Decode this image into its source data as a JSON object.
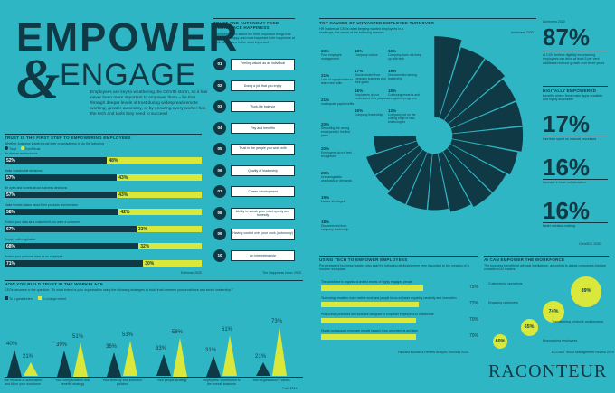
{
  "title": {
    "line1": "EMPOWER",
    "amp": "&",
    "line2": "ENGAGE",
    "intro": "Employees are key to weathering the COVID storm, so it has never been more important to empower them – be that through deeper levels of trust during widespread remote working, greater autonomy, or by ensuring every worker has the tech and tools they need to succeed"
  },
  "trust": {
    "heading": "TRUST IS THE FIRST STEP TO EMPOWERING EMPLOYEES",
    "subtitle": "Whether business leaders trust their organisations to do the following",
    "legend_trust": "Trust",
    "legend_dont": "Don't trust",
    "source": "Edelman 2020"
  },
  "ranked": {
    "heading": "TRUST AND AUTONOMY FEED WORKPLACE HAPPINESS",
    "subtitle": "Employees were asked the most important things that make them happy and most important their happiness at work, where one is the most important",
    "source": "The Happiness Index 2020"
  },
  "build": {
    "heading": "HOW YOU BUILD TRUST IN THE WORKPLACE",
    "subtitle": "CEOs' answers to the question: \"To what extent is your organisation using the following strategies to build trust between your workforce and senior leadership?\"",
    "legend_great": "To a great extent",
    "legend_large": "To a large extent",
    "source": "PwC 2019"
  },
  "turnover": {
    "heading": "TOP CAUSES OF UNWANTED EMPLOYEE TURNOVER",
    "subtitle": "HR leaders at CEOs rated keeping wanted employees is a challenge, the cause of the following reasons",
    "source": "Achievers 2020"
  },
  "right_stats": {
    "source_top": "Achievers 2020",
    "s87_value": "87%",
    "s87_text": "of CIOs believe digitally empowering employees can drive at least 5 per cent additional revenue growth over three years",
    "heading": "DIGITALLY EMPOWERED",
    "heading_sub": "Benefits where firms make apps available and highly accessible",
    "s17_value": "17%",
    "s17_text": "less time spent on manual processes",
    "s16a_value": "16%",
    "s16a_text": "increase in team collaboration",
    "s16b_value": "16%",
    "s16b_text": "faster decision-making",
    "source_bottom": "Citrix/IDC 2020"
  },
  "tech": {
    "heading": "USING TECH TO EMPOWER EMPLOYEES",
    "subtitle": "Percentage of business leaders who said the following attributes were very important to the creation of a modern workplace",
    "source": "Harvard Business Review Analytic Services 2020"
  },
  "ai": {
    "heading": "AI CAN EMPOWER THE WORKFORCE",
    "subtitle": "The business benefits of artificial intelligence, according to global companies that are considered AI leaders",
    "source": "BCG/MIT Sloan Management Review 2019"
  },
  "brand": "RACONTEUR",
  "chart_data": [
    {
      "type": "bar",
      "title": "TRUST IS THE FIRST STEP TO EMPOWERING EMPLOYEES",
      "categories": [
        "Be diverse and inclusive",
        "Make sustainable decisions",
        "Be open and honest about business decisions",
        "Make honest claims about their products and services",
        "Protect your data as a customer/if you were a customer",
        "Comply with regulation",
        "Protect your personal data as an employee"
      ],
      "series": [
        {
          "name": "Trust",
          "values": [
            52,
            57,
            57,
            58,
            67,
            68,
            71
          ],
          "labels": [
            "52%",
            "57%",
            "57%",
            "58%",
            "67%",
            "68%",
            "71%"
          ]
        },
        {
          "name": "Don't trust",
          "values": [
            48,
            43,
            43,
            42,
            33,
            32,
            30
          ],
          "labels": [
            "48%",
            "43%",
            "43%",
            "42%",
            "33%",
            "32%",
            "30%"
          ]
        }
      ],
      "ylim": [
        0,
        100
      ]
    },
    {
      "type": "table",
      "title": "TRUST AND AUTONOMY FEED WORKPLACE HAPPINESS",
      "ranks": [
        "01",
        "02",
        "03",
        "04",
        "05",
        "06",
        "07",
        "08",
        "09",
        "10"
      ],
      "items": [
        "Feeling valued as an individual",
        "Doing a job that you enjoy",
        "Work-life balance",
        "Pay and benefits",
        "Trust in the people you work with",
        "Quality of leadership",
        "Career development",
        "Ability to speak your mind openly and honestly",
        "Having control over your work (autonomy)",
        "An interesting role"
      ]
    },
    {
      "type": "bar",
      "title": "HOW YOU BUILD TRUST IN THE WORKPLACE",
      "categories": [
        "The impacts of automation and AI on your workforce",
        "Your compensation and benefits strategy",
        "Your diversity and inclusion policies",
        "Your people strategy",
        "Employees' contribution to the overall business",
        "Your organisation's values"
      ],
      "series": [
        {
          "name": "To a great extent",
          "values": [
            40,
            39,
            36,
            33,
            31,
            21
          ],
          "labels": [
            "40%",
            "39%",
            "36%",
            "33%",
            "31%",
            "21%"
          ]
        },
        {
          "name": "To a large extent",
          "values": [
            21,
            51,
            53,
            58,
            61,
            73
          ],
          "labels": [
            "21%",
            "51%",
            "53%",
            "58%",
            "61%",
            "73%"
          ]
        }
      ]
    },
    {
      "type": "pie",
      "title": "TOP CAUSES OF UNWANTED EMPLOYEE TURNOVER",
      "categories": [
        "Poor employee management",
        "Lack of opportunities to learn new skills",
        "Inadequate pay/benefits",
        "Recruiting the wrong employees in the first place",
        "Employees do not feel recognised",
        "Unmanageable workloads or demands",
        "Labour shortages",
        "Disconnected from company leadership",
        "Company culture",
        "Disconnected from company business and their goals",
        "Employees do not understand their purpose",
        "Company leadership",
        "Company does not keep up with tech",
        "Disconnected among leadership",
        "Confusing rewards and recognition programs",
        "Company not on the cutting edge of new technologies"
      ],
      "values": [
        23,
        21,
        21,
        20,
        20,
        20,
        19,
        18,
        18,
        17,
        16,
        16,
        16,
        15,
        15,
        12
      ],
      "labels": [
        "23%",
        "21%",
        "21%",
        "20%",
        "20%",
        "20%",
        "19%",
        "18%",
        "18%",
        "17%",
        "16%",
        "16%",
        "16%",
        "15%",
        "15%",
        "12%"
      ]
    },
    {
      "type": "bar",
      "title": "USING TECH TO EMPOWER EMPLOYEES",
      "categories": [
        "The workforce is organised around teams of highly engaged people",
        "Technology enables more mobile work and people focus on tasks requiring creativity and innovation",
        "Productivity practices and tools are designed to empower employees to collaborate",
        "Digital workspaces empower people to work from anywhere at any time"
      ],
      "values": [
        75,
        72,
        70,
        70
      ],
      "labels": [
        "75%",
        "72%",
        "70%",
        "70%"
      ],
      "ylim": [
        0,
        100
      ]
    },
    {
      "type": "scatter",
      "title": "AI CAN EMPOWER THE WORKFORCE",
      "categories": [
        "Customising operations",
        "Engaging customers",
        "Transforming products and services",
        "Empowering employees"
      ],
      "values": [
        89,
        74,
        65,
        60
      ],
      "labels": [
        "89%",
        "74%",
        "65%",
        "60%"
      ]
    }
  ]
}
